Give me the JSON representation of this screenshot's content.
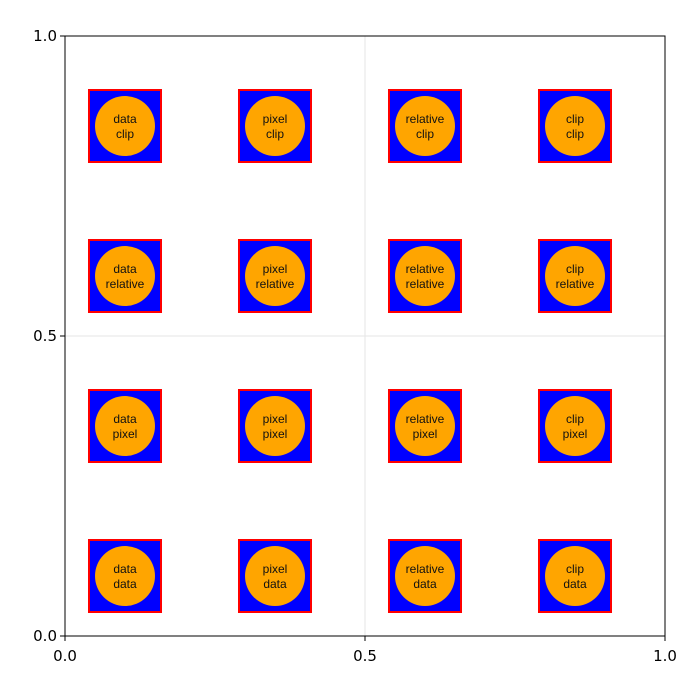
{
  "chart_data": {
    "type": "scatter",
    "title": "",
    "xlabel": "",
    "ylabel": "",
    "xlim": [
      0,
      1
    ],
    "ylim": [
      0,
      1
    ],
    "grid": true,
    "x_ticks": [
      {
        "value": 0.0,
        "label": "0.0"
      },
      {
        "value": 0.5,
        "label": "0.5"
      },
      {
        "value": 1.0,
        "label": "1.0"
      }
    ],
    "y_ticks": [
      {
        "value": 0.0,
        "label": "0.0"
      },
      {
        "value": 0.5,
        "label": "0.5"
      },
      {
        "value": 1.0,
        "label": "1.0"
      }
    ],
    "square_extent": 0.12,
    "circle_diameter": 0.1,
    "colors": {
      "square_fill": "#0000ff",
      "square_stroke": "#ff0000",
      "circle_fill": "#ffa500",
      "grid": "#e5e5e5",
      "axis": "#000000"
    },
    "columns": [
      {
        "x": 0.1,
        "name": "data"
      },
      {
        "x": 0.35,
        "name": "pixel"
      },
      {
        "x": 0.6,
        "name": "relative"
      },
      {
        "x": 0.85,
        "name": "clip"
      }
    ],
    "rows": [
      {
        "y": 0.85,
        "name": "clip"
      },
      {
        "y": 0.6,
        "name": "relative"
      },
      {
        "y": 0.35,
        "name": "pixel"
      },
      {
        "y": 0.1,
        "name": "data"
      }
    ]
  }
}
